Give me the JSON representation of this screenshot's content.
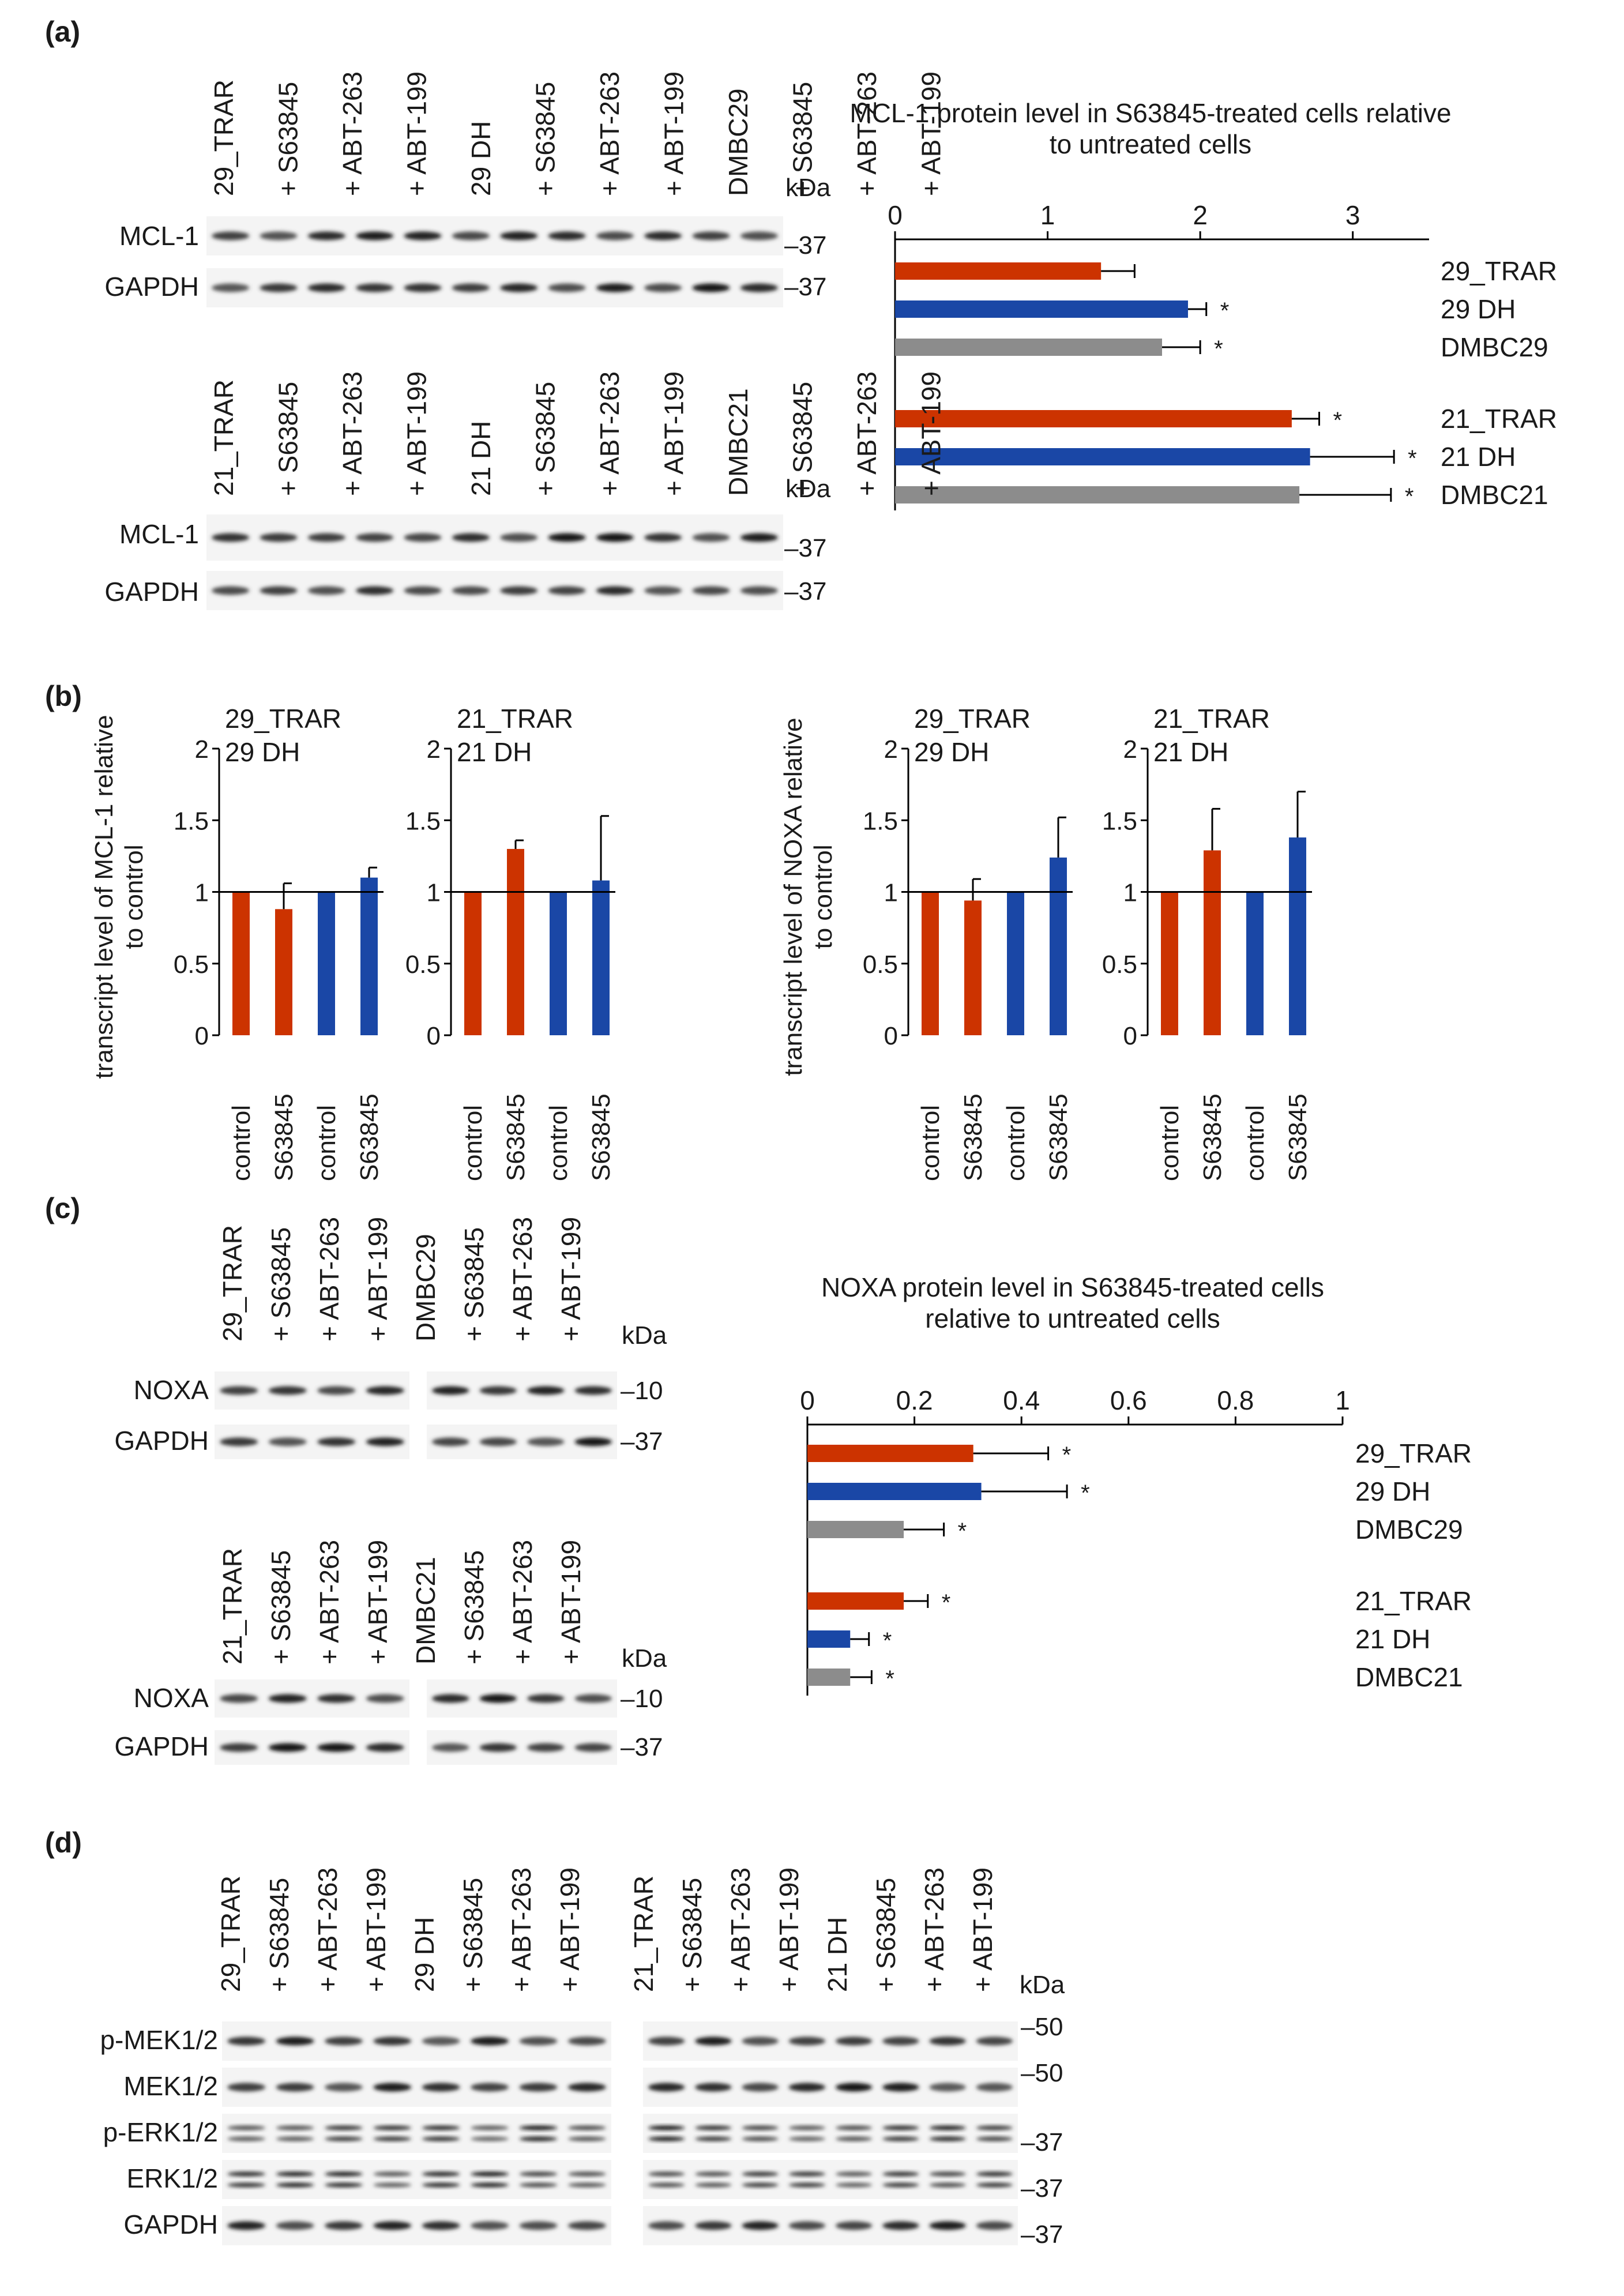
{
  "colors": {
    "trar": "#cc3300",
    "dh": "#1a47a6",
    "dmbc": "#8c8c8c",
    "text": "#1a1a1a"
  },
  "panels": {
    "a": "(a)",
    "b": "(b)",
    "c": "(c)",
    "d": "(d)"
  },
  "units": {
    "kda": "kDa"
  },
  "panel_a": {
    "blot1": {
      "lanes": [
        {
          "label": "29_TRAR",
          "color": "trar"
        },
        {
          "label": "+ S63845",
          "color": "text"
        },
        {
          "label": "+ ABT-263",
          "color": "text"
        },
        {
          "label": "+ ABT-199",
          "color": "text"
        },
        {
          "label": "29 DH",
          "color": "dh"
        },
        {
          "label": "+ S63845",
          "color": "text"
        },
        {
          "label": "+ ABT-263",
          "color": "text"
        },
        {
          "label": "+ ABT-199",
          "color": "text"
        },
        {
          "label": "DMBC29",
          "color": "text"
        },
        {
          "label": "+ S63845",
          "color": "text"
        },
        {
          "label": "+ ABT-263",
          "color": "text"
        },
        {
          "label": "+ ABT-199",
          "color": "text"
        }
      ],
      "rows": [
        {
          "label": "MCL-1",
          "marker": "–37"
        },
        {
          "label": "GAPDH",
          "marker": "–37"
        }
      ]
    },
    "blot2": {
      "lanes": [
        {
          "label": "21_TRAR",
          "color": "trar"
        },
        {
          "label": "+ S63845",
          "color": "text"
        },
        {
          "label": "+ ABT-263",
          "color": "text"
        },
        {
          "label": "+ ABT-199",
          "color": "text"
        },
        {
          "label": "21 DH",
          "color": "dh"
        },
        {
          "label": "+ S63845",
          "color": "text"
        },
        {
          "label": "+ ABT-263",
          "color": "text"
        },
        {
          "label": "+ ABT-199",
          "color": "text"
        },
        {
          "label": "DMBC21",
          "color": "text"
        },
        {
          "label": "+ S63845",
          "color": "text"
        },
        {
          "label": "+ ABT-263",
          "color": "text"
        },
        {
          "label": "+ ABT-199",
          "color": "text"
        }
      ],
      "rows": [
        {
          "label": "MCL-1",
          "marker": "–37"
        },
        {
          "label": "GAPDH",
          "marker": "–37"
        }
      ]
    }
  },
  "panel_c": {
    "blot1": {
      "left_lanes": [
        {
          "label": "29_TRAR",
          "color": "trar"
        },
        {
          "label": "+ S63845",
          "color": "text"
        },
        {
          "label": "+ ABT-263",
          "color": "text"
        },
        {
          "label": "+ ABT-199",
          "color": "text"
        }
      ],
      "right_lanes": [
        {
          "label": "DMBC29",
          "color": "text"
        },
        {
          "label": "+ S63845",
          "color": "text"
        },
        {
          "label": "+ ABT-263",
          "color": "text"
        },
        {
          "label": "+ ABT-199",
          "color": "text"
        }
      ],
      "rows": [
        {
          "label": "NOXA",
          "marker": "–10"
        },
        {
          "label": "GAPDH",
          "marker": "–37"
        }
      ]
    },
    "blot2": {
      "left_lanes": [
        {
          "label": "21_TRAR",
          "color": "trar"
        },
        {
          "label": "+ S63845",
          "color": "text"
        },
        {
          "label": "+ ABT-263",
          "color": "text"
        },
        {
          "label": "+ ABT-199",
          "color": "text"
        }
      ],
      "right_lanes": [
        {
          "label": "DMBC21",
          "color": "text"
        },
        {
          "label": "+ S63845",
          "color": "text"
        },
        {
          "label": "+ ABT-263",
          "color": "text"
        },
        {
          "label": "+ ABT-199",
          "color": "text"
        }
      ],
      "rows": [
        {
          "label": "NOXA",
          "marker": "–10"
        },
        {
          "label": "GAPDH",
          "marker": "–37"
        }
      ]
    }
  },
  "panel_d": {
    "left_lanes": [
      {
        "label": "29_TRAR",
        "color": "trar"
      },
      {
        "label": "+ S63845",
        "color": "text"
      },
      {
        "label": "+ ABT-263",
        "color": "text"
      },
      {
        "label": "+ ABT-199",
        "color": "text"
      },
      {
        "label": "29 DH",
        "color": "dh"
      },
      {
        "label": "+ S63845",
        "color": "text"
      },
      {
        "label": "+ ABT-263",
        "color": "text"
      },
      {
        "label": "+ ABT-199",
        "color": "text"
      }
    ],
    "right_lanes": [
      {
        "label": "21_TRAR",
        "color": "trar"
      },
      {
        "label": "+ S63845",
        "color": "text"
      },
      {
        "label": "+ ABT-263",
        "color": "text"
      },
      {
        "label": "+ ABT-199",
        "color": "text"
      },
      {
        "label": "21 DH",
        "color": "dh"
      },
      {
        "label": "+ S63845",
        "color": "text"
      },
      {
        "label": "+ ABT-263",
        "color": "text"
      },
      {
        "label": "+ ABT-199",
        "color": "text"
      }
    ],
    "rows": [
      {
        "label": "p-MEK1/2",
        "marker": "–50"
      },
      {
        "label": "MEK1/2",
        "marker": "–50"
      },
      {
        "label": "p-ERK1/2",
        "marker": "–37"
      },
      {
        "label": "ERK1/2",
        "marker": "–37"
      },
      {
        "label": "GAPDH",
        "marker": "–37"
      }
    ]
  },
  "chart_data": [
    {
      "id": "a-mcl1-protein",
      "type": "bar",
      "orientation": "horizontal",
      "title": "MCL-1 protein level in S63845-treated cells relative to untreated cells",
      "xlim": [
        0,
        3.5
      ],
      "xticks": [
        0,
        1,
        2,
        3
      ],
      "tick_labels": [
        "0",
        "1",
        "2",
        "3"
      ],
      "groups": [
        {
          "bars": [
            {
              "label": "29_TRAR",
              "value": 1.35,
              "error": 0.22,
              "sig": "",
              "color": "trar"
            },
            {
              "label": "29 DH",
              "value": 1.92,
              "error": 0.12,
              "sig": "*",
              "color": "dh"
            },
            {
              "label": "DMBC29",
              "value": 1.75,
              "error": 0.25,
              "sig": "*",
              "color": "dmbc"
            }
          ]
        },
        {
          "bars": [
            {
              "label": "21_TRAR",
              "value": 2.6,
              "error": 0.18,
              "sig": "*",
              "color": "trar"
            },
            {
              "label": "21 DH",
              "value": 2.72,
              "error": 0.55,
              "sig": "*",
              "color": "dh"
            },
            {
              "label": "DMBC21",
              "value": 2.65,
              "error": 0.6,
              "sig": "*",
              "color": "dmbc"
            }
          ]
        }
      ]
    },
    {
      "id": "b-mcl1-29",
      "type": "bar",
      "ylabel": "transcript level of MCL-1 relative to control",
      "legend": [
        {
          "label": "29_TRAR",
          "color": "trar"
        },
        {
          "label": "29 DH",
          "color": "dh"
        }
      ],
      "ylim": [
        0,
        2
      ],
      "yticks": [
        0,
        0.5,
        1,
        1.5,
        2
      ],
      "tick_labels": [
        "0",
        "0.5",
        "1",
        "1.5",
        "2"
      ],
      "categories": [
        "control",
        "S63845",
        "control",
        "S63845"
      ],
      "values": [
        1.0,
        0.88,
        1.0,
        1.1
      ],
      "errors": [
        0,
        0.18,
        0,
        0.07
      ],
      "colors": [
        "trar",
        "trar",
        "dh",
        "dh"
      ]
    },
    {
      "id": "b-mcl1-21",
      "type": "bar",
      "ylabel": "",
      "legend": [
        {
          "label": "21_TRAR",
          "color": "trar"
        },
        {
          "label": "21 DH",
          "color": "dh"
        }
      ],
      "ylim": [
        0,
        2
      ],
      "yticks": [
        0,
        0.5,
        1,
        1.5,
        2
      ],
      "tick_labels": [
        "0",
        "0.5",
        "1",
        "1.5",
        "2"
      ],
      "categories": [
        "control",
        "S63845",
        "control",
        "S63845"
      ],
      "values": [
        1.0,
        1.3,
        1.0,
        1.08
      ],
      "errors": [
        0,
        0.06,
        0,
        0.45
      ],
      "colors": [
        "trar",
        "trar",
        "dh",
        "dh"
      ]
    },
    {
      "id": "b-noxa-29",
      "type": "bar",
      "ylabel": "transcript level of NOXA relative to control",
      "legend": [
        {
          "label": "29_TRAR",
          "color": "trar"
        },
        {
          "label": "29 DH",
          "color": "dh"
        }
      ],
      "ylim": [
        0,
        2
      ],
      "yticks": [
        0,
        0.5,
        1,
        1.5,
        2
      ],
      "tick_labels": [
        "0",
        "0.5",
        "1",
        "1.5",
        "2"
      ],
      "categories": [
        "control",
        "S63845",
        "control",
        "S63845"
      ],
      "values": [
        1.0,
        0.94,
        1.0,
        1.24
      ],
      "errors": [
        0,
        0.15,
        0,
        0.28
      ],
      "colors": [
        "trar",
        "trar",
        "dh",
        "dh"
      ]
    },
    {
      "id": "b-noxa-21",
      "type": "bar",
      "ylabel": "",
      "legend": [
        {
          "label": "21_TRAR",
          "color": "trar"
        },
        {
          "label": "21 DH",
          "color": "dh"
        }
      ],
      "ylim": [
        0,
        2
      ],
      "yticks": [
        0,
        0.5,
        1,
        1.5,
        2
      ],
      "tick_labels": [
        "0",
        "0.5",
        "1",
        "1.5",
        "2"
      ],
      "categories": [
        "control",
        "S63845",
        "control",
        "S63845"
      ],
      "values": [
        1.0,
        1.29,
        1.0,
        1.38
      ],
      "errors": [
        0,
        0.29,
        0,
        0.32
      ],
      "colors": [
        "trar",
        "trar",
        "dh",
        "dh"
      ]
    },
    {
      "id": "c-noxa-protein",
      "type": "bar",
      "orientation": "horizontal",
      "title": "NOXA protein level in S63845-treated cells relative to untreated cells",
      "xlim": [
        0,
        1
      ],
      "xticks": [
        0,
        0.2,
        0.4,
        0.6,
        0.8,
        1
      ],
      "tick_labels": [
        "0",
        "0.2",
        "0.4",
        "0.6",
        "0.8",
        "1"
      ],
      "groups": [
        {
          "bars": [
            {
              "label": "29_TRAR",
              "value": 0.31,
              "error": 0.14,
              "sig": "*",
              "color": "trar"
            },
            {
              "label": "29 DH",
              "value": 0.325,
              "error": 0.16,
              "sig": "*",
              "color": "dh"
            },
            {
              "label": "DMBC29",
              "value": 0.18,
              "error": 0.075,
              "sig": "*",
              "color": "dmbc"
            }
          ]
        },
        {
          "bars": [
            {
              "label": "21_TRAR",
              "value": 0.18,
              "error": 0.045,
              "sig": "*",
              "color": "trar"
            },
            {
              "label": "21 DH",
              "value": 0.08,
              "error": 0.035,
              "sig": "*",
              "color": "dh"
            },
            {
              "label": "DMBC21",
              "value": 0.08,
              "error": 0.04,
              "sig": "*",
              "color": "dmbc"
            }
          ]
        }
      ]
    }
  ]
}
